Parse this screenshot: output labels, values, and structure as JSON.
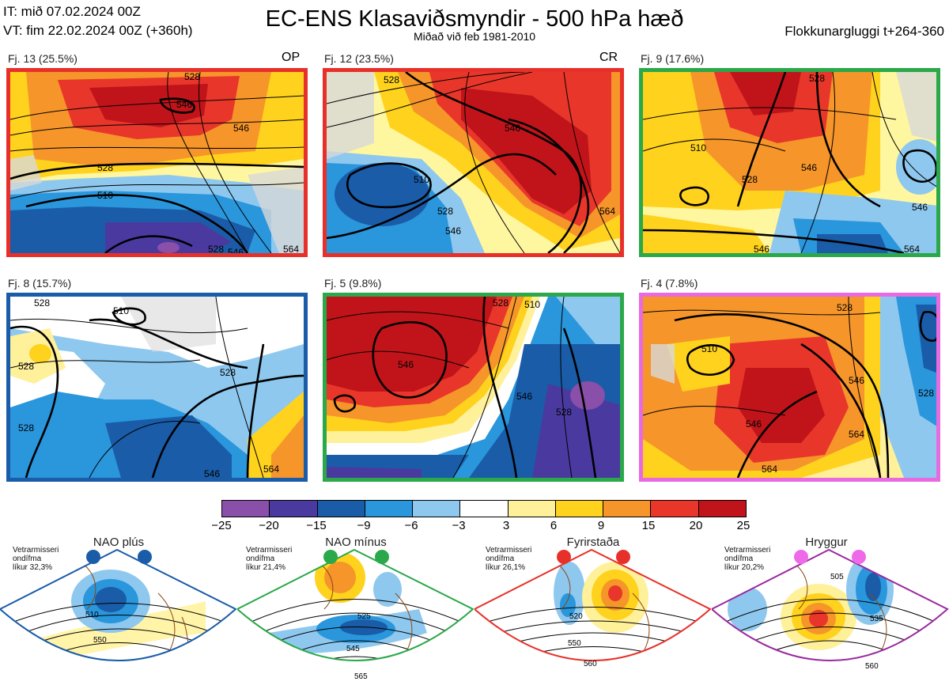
{
  "header": {
    "it": "IT: mið 07.02.2024 00Z",
    "vt": "VT: fim 22.02.2024 00Z  (+360h)",
    "title": "EC-ENS Klasaviðsmyndir - 500 hPa hæð",
    "subtitle": "Miðað við feb 1981-2010",
    "window": "Flokkunargluggi t+264-360"
  },
  "panels": [
    {
      "label": "Fj. 13 (25.5%)",
      "tag": "OP",
      "border": "#e8302a"
    },
    {
      "label": "Fj. 12 (23.5%)",
      "tag": "CR",
      "border": "#e8302a"
    },
    {
      "label": "Fj. 9 (17.6%)",
      "tag": "",
      "border": "#2aa84a"
    },
    {
      "label": "Fj. 8 (15.7%)",
      "tag": "",
      "border": "#1a5ca8"
    },
    {
      "label": "Fj. 5 (9.8%)",
      "tag": "",
      "border": "#2aa84a"
    },
    {
      "label": "Fj. 4 (7.8%)",
      "tag": "",
      "border": "#e86ae0"
    }
  ],
  "contour_labels": {
    "p0": [
      "528",
      "546",
      "546",
      "528",
      "510",
      "528",
      "546",
      "564"
    ],
    "p1": [
      "528",
      "546",
      "510",
      "528",
      "546",
      "564"
    ],
    "p2": [
      "528",
      "510",
      "528",
      "546",
      "546",
      "546",
      "564"
    ],
    "p3": [
      "528",
      "528",
      "510",
      "528",
      "528",
      "546",
      "564"
    ],
    "p4": [
      "528",
      "546",
      "546",
      "528",
      "510"
    ],
    "p5": [
      "510",
      "528",
      "528",
      "546",
      "546",
      "564",
      "564"
    ]
  },
  "colorbar": {
    "colors": [
      "#8a4fa8",
      "#4a3aa0",
      "#1a5ca8",
      "#2a96dc",
      "#8ec8ee",
      "#ffffff",
      "#fff09a",
      "#ffd21e",
      "#f5952a",
      "#e8362a",
      "#c0141a"
    ],
    "ticks": [
      "−25",
      "−20",
      "−15",
      "−9",
      "−6",
      "−3",
      "3",
      "6",
      "9",
      "15",
      "20",
      "25"
    ]
  },
  "regimes": [
    {
      "name": "NAO plús",
      "color": "#1a5ca8",
      "line1": "Vetrarmisseri",
      "line2": "ondífma",
      "line3": "líkur 32,3%",
      "contours": [
        "510",
        "550"
      ]
    },
    {
      "name": "NAO mínus",
      "color": "#2aa84a",
      "line1": "Vetrarmisseri",
      "line2": "ondífma",
      "line3": "líkur 21,4%",
      "contours": [
        "525",
        "545",
        "565"
      ]
    },
    {
      "name": "Fyrirstaða",
      "color": "#e8302a",
      "line1": "Vetrarmisseri",
      "line2": "ondífma",
      "line3": "líkur 26,1%",
      "contours": [
        "520",
        "550",
        "560"
      ]
    },
    {
      "name": "Hryggur",
      "color": "#ee6ae8",
      "line1": "Vetrarmisseri",
      "line2": "ondífma",
      "line3": "líkur 20,2%",
      "contours": [
        "505",
        "535",
        "560"
      ]
    }
  ]
}
